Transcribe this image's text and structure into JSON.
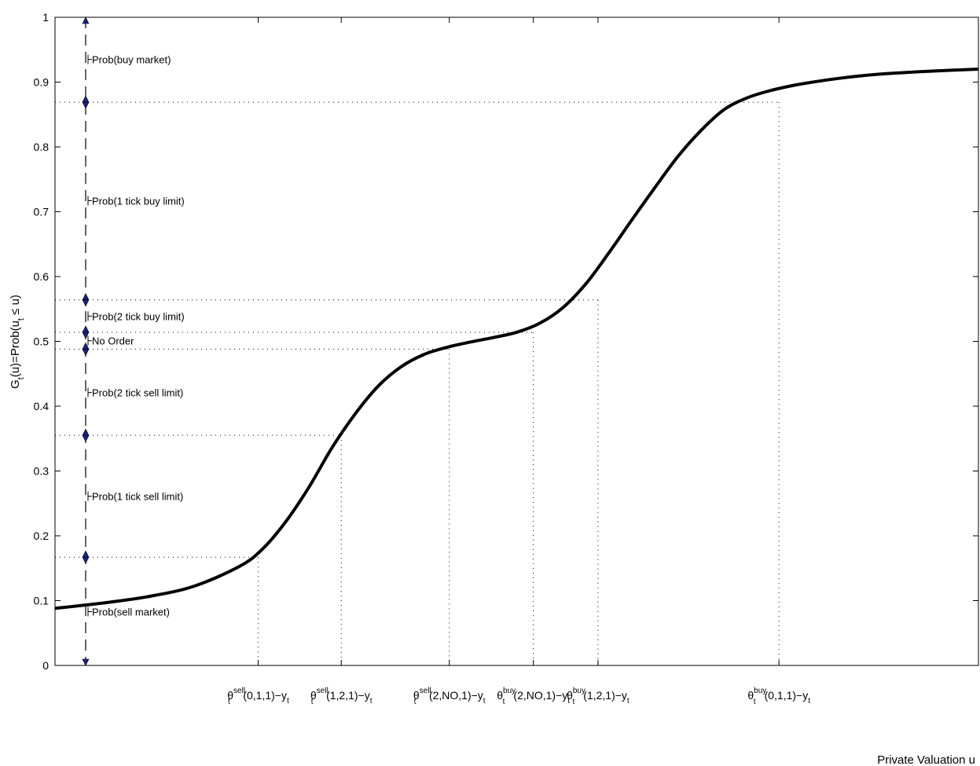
{
  "chart_data": {
    "type": "line",
    "xlabel": "Private Valuation u",
    "ylabel": "G",
    "ylabel_sub": "t",
    "ylabel_rest_1": "(u)=Prob(u",
    "ylabel_sub2": "t",
    "ylabel_rest_2": " ≤ u)",
    "xlim": [
      0,
      1
    ],
    "ylim": [
      0,
      1
    ],
    "yticks": [
      "0",
      "0.1",
      "0.2",
      "0.3",
      "0.4",
      "0.5",
      "0.6",
      "0.7",
      "0.8",
      "0.9",
      "1"
    ],
    "ytick_values": [
      0,
      0.1,
      0.2,
      0.3,
      0.4,
      0.5,
      0.6,
      0.7,
      0.8,
      0.9,
      1.0
    ],
    "grid": false,
    "curve": {
      "x": [
        0.0,
        0.05,
        0.1,
        0.15,
        0.2,
        0.225,
        0.25,
        0.275,
        0.3,
        0.325,
        0.35,
        0.375,
        0.4,
        0.425,
        0.45,
        0.475,
        0.5,
        0.525,
        0.55,
        0.575,
        0.6,
        0.625,
        0.65,
        0.675,
        0.7,
        0.725,
        0.75,
        0.775,
        0.8,
        0.825,
        0.85,
        0.875,
        0.9,
        0.95,
        1.0
      ],
      "y": [
        0.088,
        0.096,
        0.106,
        0.122,
        0.153,
        0.18,
        0.222,
        0.275,
        0.336,
        0.388,
        0.431,
        0.461,
        0.48,
        0.491,
        0.499,
        0.506,
        0.514,
        0.528,
        0.552,
        0.589,
        0.637,
        0.688,
        0.738,
        0.786,
        0.826,
        0.858,
        0.876,
        0.887,
        0.895,
        0.901,
        0.906,
        0.91,
        0.913,
        0.917,
        0.92
      ]
    },
    "thresholds": [
      {
        "x": 0.22,
        "y": 0.167,
        "theta": "θ",
        "sub": "t",
        "sup": "sell",
        "args": "(0,1,1)−y",
        "tail_sub": "t"
      },
      {
        "x": 0.31,
        "y": 0.355,
        "theta": "θ",
        "sub": "t",
        "sup": "sell",
        "args": "(1,2,1)−y",
        "tail_sub": "t"
      },
      {
        "x": 0.427,
        "y": 0.488,
        "theta": "θ",
        "sub": "t",
        "sup": "sell",
        "args": "(2,NO,1)−y",
        "tail_sub": "t"
      },
      {
        "x": 0.518,
        "y": 0.514,
        "theta": "θ",
        "sub": "t",
        "sup": "buy",
        "args": "(2,NO,1)−y",
        "tail_sub": "t"
      },
      {
        "x": 0.588,
        "y": 0.564,
        "theta": "θ",
        "sub": "t",
        "sup": "buy",
        "args": "(1,2,1)−y",
        "tail_sub": "t"
      },
      {
        "x": 0.784,
        "y": 0.869,
        "theta": "θ",
        "sub": "t",
        "sup": "buy",
        "args": "(0,1,1)−y",
        "tail_sub": "t"
      }
    ],
    "marker_levels": [
      0.167,
      0.355,
      0.488,
      0.514,
      0.564,
      0.869
    ],
    "annotations": [
      {
        "label": "Prob(buy market)",
        "y": 0.935
      },
      {
        "label": "Prob(1 tick buy limit)",
        "y": 0.717
      },
      {
        "label": "Prob(2 tick buy limit)",
        "y": 0.539
      },
      {
        "label": "No Order",
        "y": 0.501
      },
      {
        "label": "Prob(2 tick sell limit)",
        "y": 0.421
      },
      {
        "label": "Prob(1 tick sell limit)",
        "y": 0.261
      },
      {
        "label": "Prob(sell market)",
        "y": 0.083
      }
    ],
    "colors": {
      "curve": "#000000",
      "marker": "#1a237e",
      "axis": "#000000"
    }
  }
}
